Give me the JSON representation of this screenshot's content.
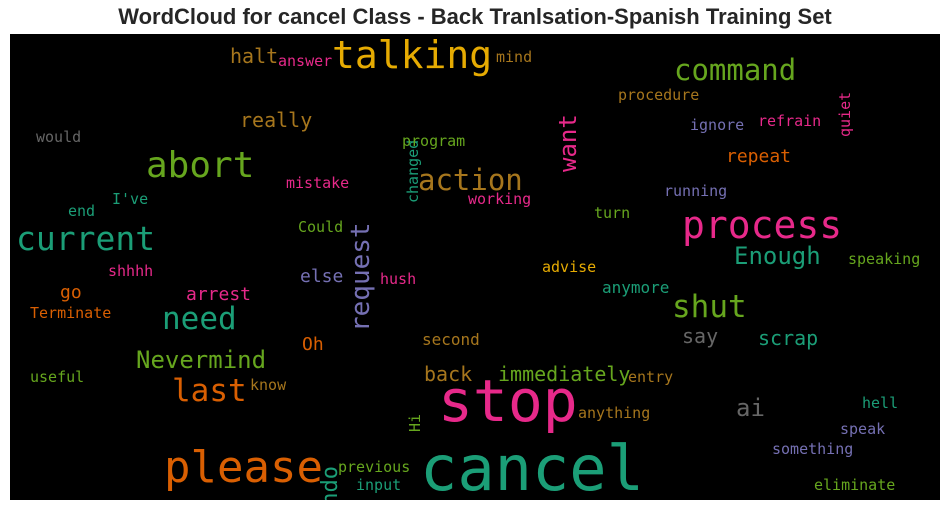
{
  "title": "WordCloud for cancel Class - Back Tranlsation-Spanish Training Set",
  "colors": {
    "pink": "#e7298a",
    "teal": "#1b9e77",
    "orange": "#d95f02",
    "green": "#66a61e",
    "gold": "#e6ab02",
    "purple": "#7570b3",
    "brown": "#a6761d",
    "gray": "#666666"
  },
  "words": {
    "cancel": "cancel",
    "stop": "stop",
    "please": "please",
    "process": "process",
    "talking": "talking",
    "abort": "abort",
    "current": "current",
    "command": "command",
    "action": "action",
    "need": "need",
    "shut": "shut",
    "request": "request",
    "last": "last",
    "nevermind": "Nevermind",
    "enough": "Enough",
    "want": "want",
    "undo": "undo",
    "ai": "ai",
    "immediately": "immediately",
    "back": "back",
    "really": "really",
    "repeat": "repeat",
    "scrap": "scrap",
    "halt": "halt",
    "say": "say",
    "oh": "Oh",
    "anymore": "anymore",
    "arrest": "arrest",
    "else": "else",
    "go": "go",
    "second": "second",
    "speaking": "speaking",
    "answer": "answer",
    "mind": "mind",
    "quiet": "quiet",
    "procedure": "procedure",
    "changed": "changed",
    "would": "would",
    "ignore": "ignore",
    "refrain": "refrain",
    "program": "program",
    "mistake": "mistake",
    "ive": "I've",
    "end": "end",
    "working": "working",
    "running": "running",
    "turn": "turn",
    "could": "Could",
    "shhhh": "shhhh",
    "hush": "hush",
    "advise": "advise",
    "terminate": "Terminate",
    "useful": "useful",
    "know": "know",
    "entry": "entry",
    "hi": "Hi",
    "anything": "anything",
    "hell": "hell",
    "speak": "speak",
    "something": "something",
    "previous": "previous",
    "input": "input",
    "eliminate": "eliminate"
  }
}
